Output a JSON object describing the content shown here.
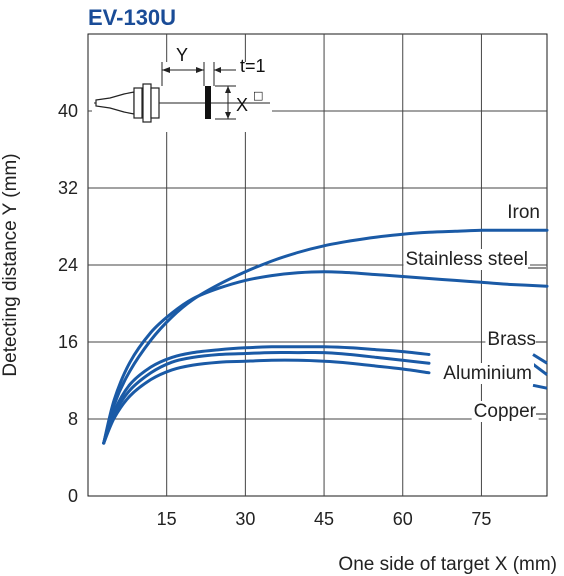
{
  "chart_data": {
    "type": "line",
    "title": "EV-130U",
    "xlabel": "One side of target X (mm)",
    "ylabel": "Detecting distance Y (mm)",
    "xlim": [
      0,
      87.5
    ],
    "ylim": [
      0,
      48
    ],
    "x_ticks": [
      "15",
      "30",
      "45",
      "60",
      "75"
    ],
    "y_ticks": [
      "0",
      "8",
      "16",
      "24",
      "32",
      "40"
    ],
    "grid": true,
    "line_color": "#1a5aa6",
    "title_color": "#1a4c97",
    "series": [
      {
        "name": "Iron",
        "x": [
          3,
          5,
          8,
          12,
          16,
          20,
          25,
          30,
          35,
          40,
          45,
          50,
          55,
          60,
          65,
          70,
          75,
          80,
          87.5
        ],
        "y": [
          5.5,
          9.5,
          13,
          16.2,
          18.6,
          20.4,
          22.0,
          23.3,
          24.4,
          25.3,
          26.0,
          26.5,
          26.9,
          27.2,
          27.4,
          27.5,
          27.6,
          27.6,
          27.6
        ]
      },
      {
        "name": "Stainless steel",
        "x": [
          3,
          5,
          8,
          12,
          16,
          20,
          25,
          30,
          35,
          40,
          45,
          50,
          55,
          60,
          65,
          70,
          75,
          80,
          87.5
        ],
        "y": [
          5.5,
          10,
          13.9,
          17.0,
          19.0,
          20.5,
          21.6,
          22.4,
          22.9,
          23.2,
          23.3,
          23.2,
          23.0,
          22.8,
          22.6,
          22.4,
          22.2,
          22.0,
          21.8
        ]
      },
      {
        "name": "Brass",
        "x": [
          3,
          5,
          8,
          12,
          16,
          20,
          25,
          30,
          35,
          40,
          45,
          50,
          55,
          60,
          65
        ],
        "y": [
          5.5,
          8.8,
          11.6,
          13.4,
          14.4,
          14.9,
          15.2,
          15.4,
          15.5,
          15.5,
          15.5,
          15.4,
          15.2,
          15.0,
          14.7
        ]
      },
      {
        "name": "Aluminium",
        "x": [
          3,
          5,
          8,
          12,
          16,
          20,
          25,
          30,
          35,
          40,
          45,
          50,
          55,
          60,
          65
        ],
        "y": [
          5.5,
          8.5,
          11.0,
          12.8,
          13.9,
          14.4,
          14.7,
          14.8,
          14.9,
          14.9,
          14.9,
          14.7,
          14.4,
          14.1,
          13.8
        ]
      },
      {
        "name": "Copper",
        "x": [
          3,
          5,
          8,
          12,
          16,
          20,
          25,
          30,
          35,
          40,
          45,
          50,
          55,
          60,
          65
        ],
        "y": [
          5.5,
          8.1,
          10.4,
          12.1,
          13.1,
          13.6,
          13.9,
          14.0,
          14.1,
          14.1,
          14.0,
          13.8,
          13.5,
          13.2,
          12.8
        ]
      }
    ]
  },
  "diagram": {
    "y_label": "Y",
    "t_label": "t=1",
    "x_label": "X",
    "x_sup": "□"
  }
}
